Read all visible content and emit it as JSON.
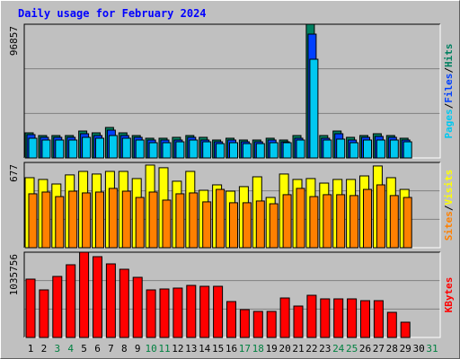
{
  "chart_data": [
    {
      "type": "bar",
      "title": "Daily usage for February 2024",
      "ylim": [
        0,
        96857
      ],
      "yticks": [
        96857
      ],
      "grid_divisions": 3,
      "legend_separator": "/",
      "series": [
        {
          "name": "Hits",
          "color": "#008060",
          "values": [
            18200,
            16250,
            16250,
            16250,
            19500,
            18200,
            22100,
            18200,
            16250,
            14300,
            14300,
            14950,
            16250,
            14950,
            13000,
            14300,
            13000,
            13000,
            14300,
            13000,
            16250,
            96857,
            16250,
            19500,
            14950,
            16250,
            17550,
            16250,
            14300,
            null,
            null
          ]
        },
        {
          "name": "Files",
          "color": "#0040ff",
          "values": [
            16900,
            14950,
            14950,
            14950,
            17550,
            16250,
            20150,
            16250,
            14950,
            13000,
            13000,
            13000,
            14950,
            13000,
            11700,
            13000,
            11700,
            11700,
            13000,
            11700,
            14300,
            89700,
            14300,
            17550,
            13000,
            14950,
            15600,
            14950,
            13000,
            null,
            null
          ]
        },
        {
          "name": "Pages",
          "color": "#00c8f0",
          "values": [
            14300,
            13000,
            13000,
            13000,
            14950,
            14300,
            16250,
            14300,
            13000,
            11050,
            11050,
            11700,
            13000,
            11700,
            10400,
            11050,
            10400,
            10400,
            11050,
            11050,
            13000,
            71500,
            13000,
            13650,
            11050,
            13000,
            13000,
            13000,
            11700,
            null,
            null
          ]
        }
      ]
    },
    {
      "type": "bar",
      "ylim": [
        0,
        677
      ],
      "yticks": [
        677
      ],
      "grid_divisions": 3,
      "legend_separator": "/",
      "series": [
        {
          "name": "Visits",
          "color": "#ffff00",
          "values": [
            556,
            542,
            506,
            578,
            606,
            585,
            606,
            606,
            549,
            656,
            635,
            528,
            606,
            456,
            499,
            449,
            485,
            563,
            399,
            585,
            542,
            549,
            513,
            542,
            542,
            570,
            649,
            556,
            463,
            null,
            null
          ]
        },
        {
          "name": "Sites",
          "color": "#ff8000",
          "values": [
            428,
            442,
            406,
            449,
            435,
            442,
            471,
            449,
            399,
            442,
            378,
            428,
            435,
            364,
            463,
            357,
            357,
            371,
            349,
            421,
            471,
            406,
            421,
            421,
            414,
            463,
            499,
            414,
            399,
            null,
            null
          ]
        }
      ]
    },
    {
      "type": "bar",
      "ylim": [
        0,
        1035756
      ],
      "yticks": [
        1035756
      ],
      "grid_divisions": 3,
      "series": [
        {
          "name": "KBytes",
          "color": "#ff0000",
          "values": [
            708700,
            577900,
            741400,
            883100,
            1035756,
            981300,
            894000,
            828600,
            730500,
            577900,
            588800,
            599700,
            632400,
            621500,
            621500,
            436100,
            338000,
            316200,
            316200,
            479700,
            381600,
            512400,
            468800,
            468800,
            468800,
            447000,
            447000,
            305300,
            185400,
            null,
            null
          ]
        }
      ],
      "categories": [
        "1",
        "2",
        "3",
        "4",
        "5",
        "6",
        "7",
        "8",
        "9",
        "10",
        "11",
        "12",
        "13",
        "14",
        "15",
        "16",
        "17",
        "18",
        "19",
        "20",
        "21",
        "22",
        "23",
        "24",
        "25",
        "26",
        "27",
        "28",
        "29",
        "30",
        "31"
      ],
      "label_colors": [
        "#000000",
        "#000000",
        "#008040",
        "#008040",
        "#000000",
        "#000000",
        "#000000",
        "#000000",
        "#000000",
        "#008040",
        "#008040",
        "#000000",
        "#000000",
        "#000000",
        "#000000",
        "#000000",
        "#008040",
        "#008040",
        "#000000",
        "#000000",
        "#000000",
        "#000000",
        "#000000",
        "#008040",
        "#008040",
        "#000000",
        "#000000",
        "#000000",
        "#000000",
        "#000000",
        "#008040"
      ]
    }
  ]
}
